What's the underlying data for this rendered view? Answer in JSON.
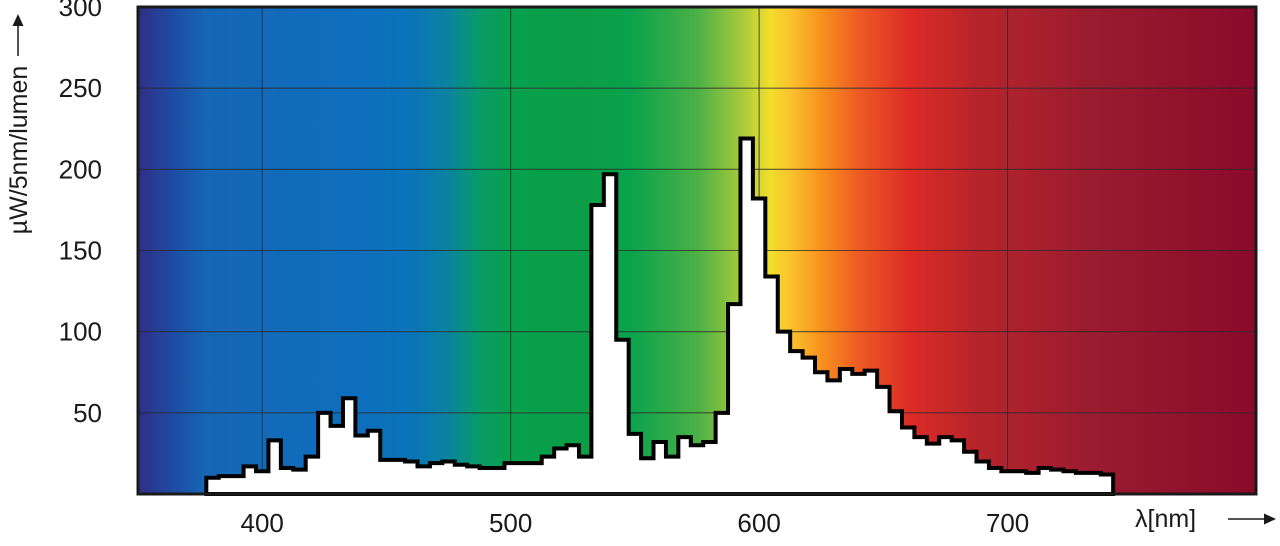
{
  "chart_data": {
    "type": "area",
    "xlabel": "λ[nm]",
    "ylabel": "µW/5nm/lumen",
    "xlim": [
      350,
      800
    ],
    "ylim": [
      0,
      300
    ],
    "x_ticks": [
      400,
      500,
      600,
      700
    ],
    "y_ticks": [
      50,
      100,
      150,
      200,
      250,
      300
    ],
    "grid": true,
    "background": "visible spectrum color gradient (violet to deep red)",
    "series": [
      {
        "step_width_nm": 5,
        "x": [
          380,
          385,
          390,
          395,
          400,
          405,
          410,
          415,
          420,
          425,
          430,
          435,
          440,
          445,
          450,
          455,
          460,
          465,
          470,
          475,
          480,
          485,
          490,
          495,
          500,
          505,
          510,
          515,
          520,
          525,
          530,
          535,
          540,
          545,
          550,
          555,
          560,
          565,
          570,
          575,
          580,
          585,
          590,
          595,
          600,
          605,
          610,
          615,
          620,
          625,
          630,
          635,
          640,
          645,
          650,
          655,
          660,
          665,
          670,
          675,
          680,
          685,
          690,
          695,
          700,
          705,
          710,
          715,
          720,
          725,
          730,
          735,
          740
        ],
        "values": [
          10,
          11,
          11,
          17,
          14,
          33,
          16,
          15,
          23,
          50,
          42,
          59,
          36,
          39,
          21,
          21,
          20,
          17,
          19,
          20,
          18,
          17,
          16,
          16,
          19,
          19,
          19,
          23,
          28,
          30,
          23,
          178,
          197,
          95,
          37,
          22,
          32,
          23,
          35,
          30,
          32,
          50,
          117,
          219,
          182,
          134,
          100,
          88,
          84,
          75,
          70,
          77,
          74,
          76,
          66,
          51,
          41,
          35,
          31,
          35,
          33,
          26,
          20,
          16,
          14,
          14,
          13,
          16,
          15,
          14,
          13,
          13,
          12
        ]
      }
    ]
  }
}
